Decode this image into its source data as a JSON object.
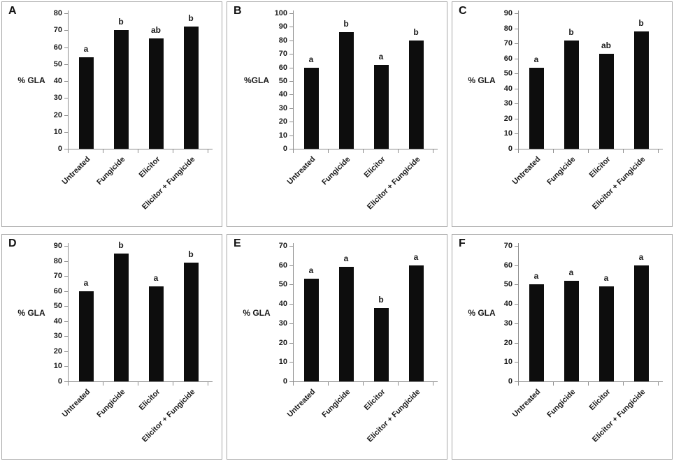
{
  "figure": {
    "background": "#ffffff",
    "bar_color": "#0d0d0d",
    "axis_color": "#8c8c8c",
    "panel_border_color": "#a6a6a6",
    "text_color": "#1a1a1a"
  },
  "chart_data": [
    {
      "type": "bar",
      "panel": "A",
      "ylabel": "% GLA",
      "ylim": [
        0,
        80
      ],
      "ytick_step": 10,
      "grid": false,
      "legend": false,
      "categories": [
        "Untreated",
        "Fungicide",
        "Elicitor",
        "Elicitor + Fungicide"
      ],
      "values": [
        54,
        70,
        65,
        72
      ],
      "sig_letters": [
        "a",
        "b",
        "ab",
        "b"
      ]
    },
    {
      "type": "bar",
      "panel": "B",
      "ylabel": "%GLA",
      "ylim": [
        0,
        100
      ],
      "ytick_step": 10,
      "grid": false,
      "legend": false,
      "categories": [
        "Untreated",
        "Fungicide",
        "Elicitor",
        "Elicitor + Fungicide"
      ],
      "values": [
        60,
        86,
        62,
        80
      ],
      "sig_letters": [
        "a",
        "b",
        "a",
        "b"
      ]
    },
    {
      "type": "bar",
      "panel": "C",
      "ylabel": "% GLA",
      "ylim": [
        0,
        90
      ],
      "ytick_step": 10,
      "grid": false,
      "legend": false,
      "categories": [
        "Untreated",
        "Fungicide",
        "Elicitor",
        "Elicitor + Fungicide"
      ],
      "values": [
        54,
        72,
        63,
        78
      ],
      "sig_letters": [
        "a",
        "b",
        "ab",
        "b"
      ]
    },
    {
      "type": "bar",
      "panel": "D",
      "ylabel": "% GLA",
      "ylim": [
        0,
        90
      ],
      "ytick_step": 10,
      "grid": false,
      "legend": false,
      "categories": [
        "Untreated",
        "Fungicide",
        "Elicitor",
        "Elicitor + Fungicide"
      ],
      "values": [
        60,
        85,
        63,
        79
      ],
      "sig_letters": [
        "a",
        "b",
        "a",
        "b"
      ]
    },
    {
      "type": "bar",
      "panel": "E",
      "ylabel": "% GLA",
      "ylim": [
        0,
        70
      ],
      "ytick_step": 10,
      "grid": false,
      "legend": false,
      "categories": [
        "Untreated",
        "Fungicide",
        "Elicitor",
        "Elicitor + Fungicide"
      ],
      "values": [
        53,
        59,
        38,
        60
      ],
      "sig_letters": [
        "a",
        "a",
        "b",
        "a"
      ]
    },
    {
      "type": "bar",
      "panel": "F",
      "ylabel": "% GLA",
      "ylim": [
        0,
        70
      ],
      "ytick_step": 10,
      "grid": false,
      "legend": false,
      "categories": [
        "Untreated",
        "Fungicide",
        "Elicitor",
        "Elicitor + Fungicide"
      ],
      "values": [
        50,
        52,
        49,
        60
      ],
      "sig_letters": [
        "a",
        "a",
        "a",
        "a"
      ]
    }
  ]
}
